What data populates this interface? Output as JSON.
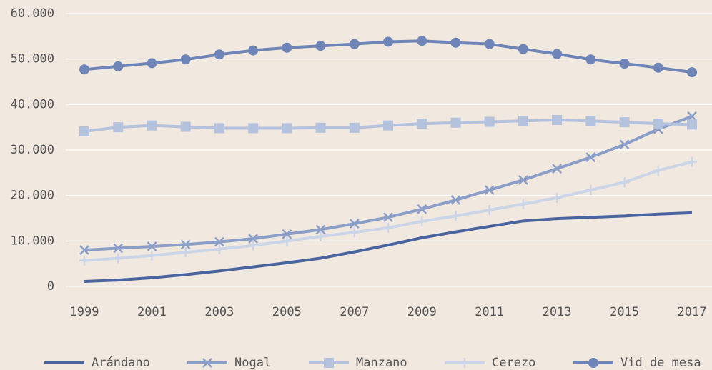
{
  "chart_data": {
    "type": "line",
    "x": [
      1999,
      2000,
      2001,
      2002,
      2003,
      2004,
      2005,
      2006,
      2007,
      2008,
      2009,
      2010,
      2011,
      2012,
      2013,
      2014,
      2015,
      2016,
      2017
    ],
    "xlim": [
      1999,
      2017
    ],
    "xticks": [
      1999,
      2001,
      2003,
      2005,
      2007,
      2009,
      2011,
      2013,
      2015,
      2017
    ],
    "ylim": [
      0,
      60000
    ],
    "yticks": [
      0,
      {
        "value": 10000,
        "label": "10.000"
      },
      {
        "value": 20000,
        "label": "20.000"
      },
      {
        "value": 30000,
        "label": "30.000"
      },
      {
        "value": 40000,
        "label": "40.000"
      },
      {
        "value": 50000,
        "label": "50.000"
      },
      {
        "value": 60000,
        "label": "60.000"
      }
    ],
    "grid": true,
    "legend": "bottom",
    "series": [
      {
        "name": "Arándano",
        "color": "#4a64a0",
        "marker": "none",
        "values": [
          1100,
          1400,
          1900,
          2600,
          3400,
          4300,
          5200,
          6200,
          7600,
          9100,
          10700,
          12000,
          13200,
          14400,
          14900,
          15200,
          15500,
          15900,
          16200
        ]
      },
      {
        "name": "Nogal",
        "color": "#8b9ec8",
        "marker": "x",
        "values": [
          8000,
          8400,
          8800,
          9200,
          9800,
          10500,
          11500,
          12500,
          13800,
          15200,
          17000,
          19000,
          21200,
          23400,
          25900,
          28400,
          31200,
          34600,
          37400
        ]
      },
      {
        "name": "Manzano",
        "color": "#b5c2de",
        "marker": "square",
        "values": [
          34100,
          35000,
          35400,
          35100,
          34800,
          34800,
          34800,
          34900,
          34900,
          35400,
          35800,
          36000,
          36200,
          36400,
          36600,
          36400,
          36100,
          35800,
          35600
        ]
      },
      {
        "name": "Cerezo",
        "color": "#ccd5e8",
        "marker": "plus",
        "values": [
          5700,
          6200,
          6800,
          7500,
          8200,
          9000,
          10000,
          11000,
          11900,
          12900,
          14300,
          15500,
          16800,
          18100,
          19500,
          21200,
          22900,
          25500,
          27400
        ]
      },
      {
        "name": "Vid de mesa",
        "color": "#6f85b8",
        "marker": "circle",
        "values": [
          47700,
          48400,
          49100,
          49900,
          51000,
          51900,
          52500,
          52900,
          53300,
          53800,
          54000,
          53600,
          53300,
          52200,
          51100,
          49900,
          49000,
          48100,
          47100
        ]
      }
    ]
  }
}
